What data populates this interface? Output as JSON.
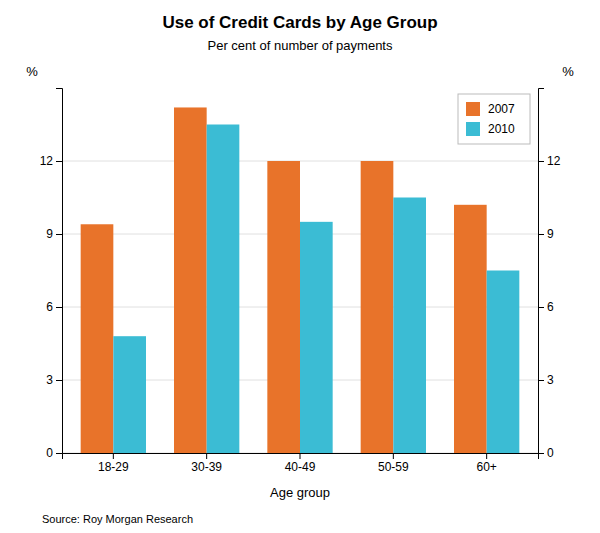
{
  "chart_data": {
    "type": "bar",
    "title": "Use of Credit Cards by Age Group",
    "subtitle": "Per cent of number of payments",
    "xlabel": "Age group",
    "ylabel": "%",
    "y2label": "%",
    "source": "Source: Roy Morgan Research",
    "categories": [
      "18-29",
      "30-39",
      "40-49",
      "50-59",
      "60+"
    ],
    "series": [
      {
        "name": "2007",
        "color": "#E8732A",
        "values": [
          9.4,
          14.2,
          12.0,
          12.0,
          10.2
        ]
      },
      {
        "name": "2010",
        "color": "#3BBCD4",
        "values": [
          4.8,
          13.5,
          9.5,
          10.5,
          7.5
        ]
      }
    ],
    "ylim": [
      0,
      15
    ],
    "yticks": [
      0,
      3,
      6,
      9,
      12
    ],
    "y2lim": [
      0,
      15
    ],
    "y2ticks": [
      0,
      3,
      6,
      9,
      12
    ],
    "grid": true,
    "legend": "upper right"
  }
}
